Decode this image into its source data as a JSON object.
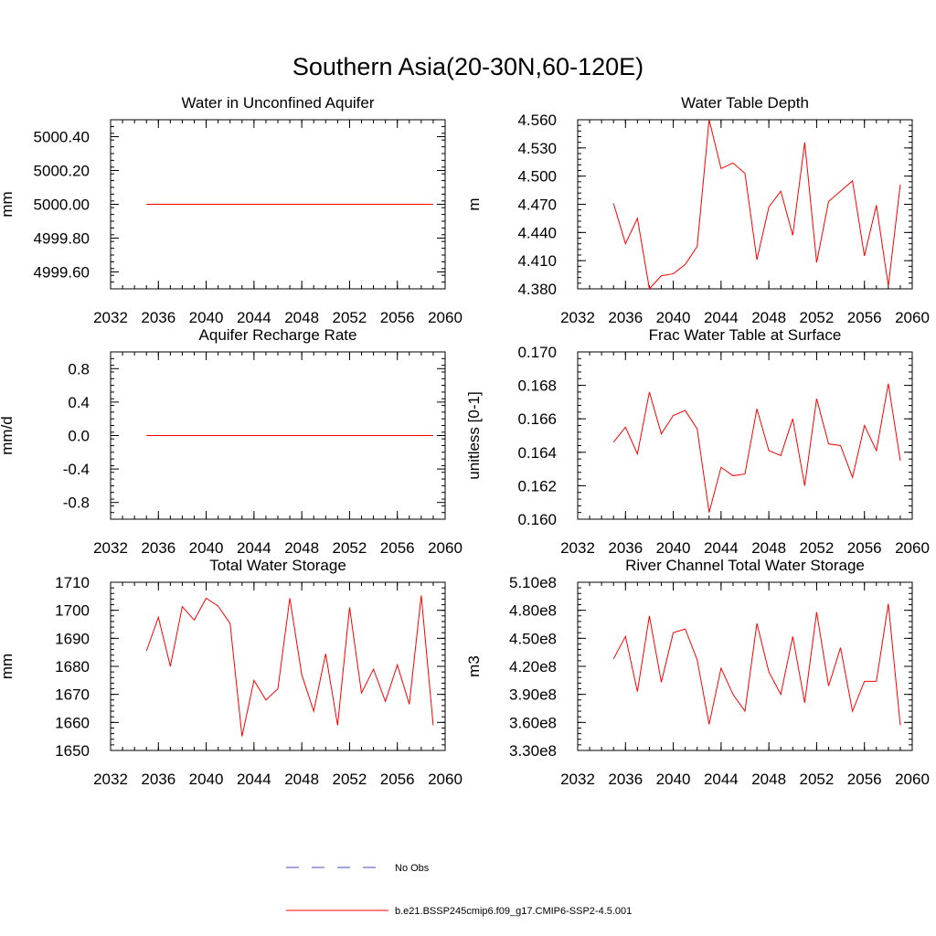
{
  "title": "Southern Asia(20-30N,60-120E)",
  "legend": {
    "placement": "bottom-center",
    "entries": [
      {
        "label": "No Obs",
        "color": "#4a4ac0",
        "dash": "dashed"
      },
      {
        "label": "b.e21.BSSP245cmip6.f09_g17.CMIP6-SSP2-4.5.001",
        "color": "#ff0000",
        "dash": "solid"
      }
    ]
  },
  "series_color": "#ff0000",
  "chart_data": [
    {
      "type": "line",
      "title": "Water in Unconfined Aquifer",
      "ylabel": "mm",
      "xlim": [
        2032,
        2060
      ],
      "xticks": [
        2032,
        2036,
        2040,
        2044,
        2048,
        2052,
        2056,
        2060
      ],
      "xminor": 1,
      "ylim": [
        4999.5,
        5000.5
      ],
      "yticks": [
        4999.6,
        4999.8,
        5000.0,
        5000.2,
        5000.4
      ],
      "ytick_labels": [
        "4999.60",
        "4999.80",
        "5000.00",
        "5000.20",
        "5000.40"
      ],
      "yminor": 0.04,
      "x": [
        2035,
        2036,
        2037,
        2038,
        2039,
        2040,
        2041,
        2042,
        2043,
        2044,
        2045,
        2046,
        2047,
        2048,
        2049,
        2050,
        2051,
        2052,
        2053,
        2054,
        2055,
        2056,
        2057,
        2058,
        2059
      ],
      "y": [
        5000,
        5000,
        5000,
        5000,
        5000,
        5000,
        5000,
        5000,
        5000,
        5000,
        5000,
        5000,
        5000,
        5000,
        5000,
        5000,
        5000,
        5000,
        5000,
        5000,
        5000,
        5000,
        5000,
        5000,
        5000
      ]
    },
    {
      "type": "line",
      "title": "Water Table Depth",
      "ylabel": "m",
      "xlim": [
        2032,
        2060
      ],
      "xticks": [
        2032,
        2036,
        2040,
        2044,
        2048,
        2052,
        2056,
        2060
      ],
      "xminor": 1,
      "ylim": [
        4.38,
        4.56
      ],
      "yticks": [
        4.38,
        4.41,
        4.44,
        4.47,
        4.5,
        4.53,
        4.56
      ],
      "ytick_labels": [
        "4.380",
        "4.410",
        "4.440",
        "4.470",
        "4.500",
        "4.530",
        "4.560"
      ],
      "yminor": 0.006,
      "x": [
        2035,
        2036,
        2037,
        2038,
        2039,
        2040,
        2041,
        2042,
        2043,
        2044,
        2045,
        2046,
        2047,
        2048,
        2049,
        2050,
        2051,
        2052,
        2053,
        2054,
        2055,
        2056,
        2057,
        2058,
        2059
      ],
      "y": [
        4.471,
        4.428,
        4.455,
        4.38,
        4.394,
        4.396,
        4.406,
        4.425,
        4.56,
        4.508,
        4.514,
        4.503,
        4.411,
        4.467,
        4.484,
        4.437,
        4.536,
        4.408,
        4.473,
        4.484,
        4.495,
        4.415,
        4.469,
        4.383,
        4.491
      ]
    },
    {
      "type": "line",
      "title": "Aquifer Recharge Rate",
      "ylabel": "mm/d",
      "xlim": [
        2032,
        2060
      ],
      "xticks": [
        2032,
        2036,
        2040,
        2044,
        2048,
        2052,
        2056,
        2060
      ],
      "xminor": 1,
      "ylim": [
        -1.0,
        1.0
      ],
      "yticks": [
        -0.8,
        -0.4,
        0.0,
        0.4,
        0.8
      ],
      "ytick_labels": [
        "-0.8",
        "-0.4",
        "0.0",
        "0.4",
        "0.8"
      ],
      "yminor": 0.08,
      "x": [
        2035,
        2036,
        2037,
        2038,
        2039,
        2040,
        2041,
        2042,
        2043,
        2044,
        2045,
        2046,
        2047,
        2048,
        2049,
        2050,
        2051,
        2052,
        2053,
        2054,
        2055,
        2056,
        2057,
        2058,
        2059
      ],
      "y": [
        0,
        0,
        0,
        0,
        0,
        0,
        0,
        0,
        0,
        0,
        0,
        0,
        0,
        0,
        0,
        0,
        0,
        0,
        0,
        0,
        0,
        0,
        0,
        0,
        0
      ]
    },
    {
      "type": "line",
      "title": "Frac Water Table at Surface",
      "ylabel": "unitless [0-1]",
      "xlim": [
        2032,
        2060
      ],
      "xticks": [
        2032,
        2036,
        2040,
        2044,
        2048,
        2052,
        2056,
        2060
      ],
      "xminor": 1,
      "ylim": [
        0.16,
        0.17
      ],
      "yticks": [
        0.16,
        0.162,
        0.164,
        0.166,
        0.168,
        0.17
      ],
      "ytick_labels": [
        "0.160",
        "0.162",
        "0.164",
        "0.166",
        "0.168",
        "0.170"
      ],
      "yminor": 0.0004,
      "x": [
        2035,
        2036,
        2037,
        2038,
        2039,
        2040,
        2041,
        2042,
        2043,
        2044,
        2045,
        2046,
        2047,
        2048,
        2049,
        2050,
        2051,
        2052,
        2053,
        2054,
        2055,
        2056,
        2057,
        2058,
        2059
      ],
      "y": [
        0.1646,
        0.1655,
        0.1639,
        0.1676,
        0.1651,
        0.1662,
        0.1665,
        0.1654,
        0.1604,
        0.1631,
        0.1626,
        0.1627,
        0.1666,
        0.1641,
        0.1638,
        0.166,
        0.162,
        0.1672,
        0.1645,
        0.1644,
        0.1625,
        0.1656,
        0.1641,
        0.1681,
        0.1635
      ]
    },
    {
      "type": "line",
      "title": "Total Water Storage",
      "ylabel": "mm",
      "xlim": [
        2032,
        2060
      ],
      "xticks": [
        2032,
        2036,
        2040,
        2044,
        2048,
        2052,
        2056,
        2060
      ],
      "xminor": 1,
      "ylim": [
        1650,
        1710
      ],
      "yticks": [
        1650,
        1660,
        1670,
        1680,
        1690,
        1700,
        1710
      ],
      "ytick_labels": [
        "1650",
        "1660",
        "1670",
        "1680",
        "1690",
        "1700",
        "1710"
      ],
      "yminor": 2,
      "x": [
        2035,
        2036,
        2037,
        2038,
        2039,
        2040,
        2041,
        2042,
        2043,
        2044,
        2045,
        2046,
        2047,
        2048,
        2049,
        2050,
        2051,
        2052,
        2053,
        2054,
        2055,
        2056,
        2057,
        2058,
        2059
      ],
      "y": [
        1685.5,
        1697.5,
        1680.0,
        1701.3,
        1696.5,
        1704.3,
        1701.5,
        1695.3,
        1655.0,
        1675.0,
        1668.0,
        1672.0,
        1704.3,
        1677.0,
        1664.0,
        1684.5,
        1659.0,
        1701.0,
        1670.5,
        1679.0,
        1667.5,
        1680.5,
        1666.5,
        1705.3,
        1659.0
      ]
    },
    {
      "type": "line",
      "title": "River Channel Total Water Storage",
      "ylabel": "m3",
      "xlim": [
        2032,
        2060
      ],
      "xticks": [
        2032,
        2036,
        2040,
        2044,
        2048,
        2052,
        2056,
        2060
      ],
      "xminor": 1,
      "ylim": [
        330000000,
        510000000
      ],
      "yticks": [
        330000000,
        360000000,
        390000000,
        420000000,
        450000000,
        480000000,
        510000000
      ],
      "ytick_labels": [
        "3.30e8",
        "3.60e8",
        "3.90e8",
        "4.20e8",
        "4.50e8",
        "4.80e8",
        "5.10e8"
      ],
      "yminor": 6000000,
      "x": [
        2035,
        2036,
        2037,
        2038,
        2039,
        2040,
        2041,
        2042,
        2043,
        2044,
        2045,
        2046,
        2047,
        2048,
        2049,
        2050,
        2051,
        2052,
        2053,
        2054,
        2055,
        2056,
        2057,
        2058,
        2059
      ],
      "y": [
        428000000,
        452000000,
        393000000,
        474000000,
        403000000,
        456000000,
        460000000,
        427000000,
        358000000,
        418000000,
        390000000,
        372000000,
        466000000,
        414000000,
        390000000,
        452000000,
        381000000,
        478000000,
        399000000,
        440000000,
        372000000,
        404000000,
        404000000,
        487000000,
        357000000
      ]
    }
  ]
}
